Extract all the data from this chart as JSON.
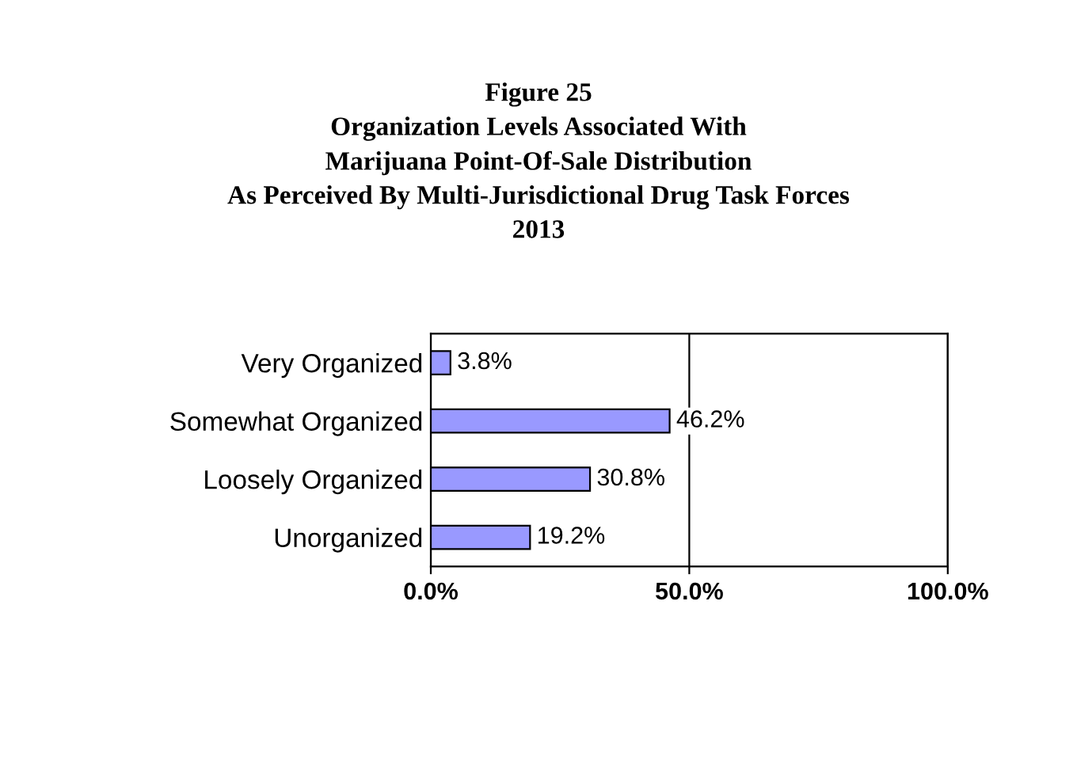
{
  "chart_data": {
    "type": "bar",
    "orientation": "horizontal",
    "title": "Figure 25\nOrganization Levels Associated With\nMarijuana Point-Of-Sale Distribution\nAs Perceived By Multi-Jurisdictional Drug Task Forces\n2013",
    "categories": [
      "Very Organized",
      "Somewhat Organized",
      "Loosely Organized",
      "Unorganized"
    ],
    "values": [
      3.8,
      46.2,
      30.8,
      19.2
    ],
    "value_labels": [
      "3.8%",
      "46.2%",
      "30.8%",
      "19.2%"
    ],
    "color": "#9999ff",
    "xlim": [
      0,
      100
    ],
    "xticks": [
      {
        "value": 0,
        "label": "0.0%"
      },
      {
        "value": 50,
        "label": "50.0%"
      },
      {
        "value": 100,
        "label": "100.0%"
      }
    ],
    "grid": "x"
  }
}
